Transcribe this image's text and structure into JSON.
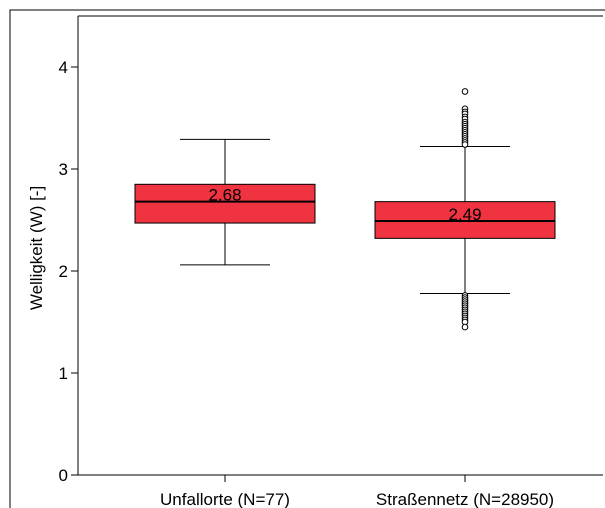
{
  "chart_data": {
    "type": "box",
    "title": "",
    "ylabel": "Welligkeit (W) [-]",
    "xlabel": "",
    "ylim": [
      0,
      4.5
    ],
    "yticks": [
      0,
      1,
      2,
      3,
      4
    ],
    "grid": false,
    "box_color": "#ef3340",
    "series": [
      {
        "category": "Unfallorte (N=77)",
        "median": 2.68,
        "median_label": "2,68",
        "q1": 2.47,
        "q3": 2.85,
        "whisker_low": 2.06,
        "whisker_high": 3.29,
        "outliers": []
      },
      {
        "category": "Straßennetz (N=28950)",
        "median": 2.49,
        "median_label": "2,49",
        "q1": 2.32,
        "q3": 2.68,
        "whisker_low": 1.78,
        "whisker_high": 3.22,
        "outliers": [
          3.76,
          3.59,
          3.56,
          3.54,
          3.51,
          3.49,
          3.46,
          3.44,
          3.42,
          3.4,
          3.38,
          3.36,
          3.34,
          3.32,
          3.3,
          3.28,
          3.26,
          3.24,
          1.76,
          1.74,
          1.72,
          1.7,
          1.68,
          1.66,
          1.64,
          1.62,
          1.6,
          1.58,
          1.56,
          1.54,
          1.52,
          1.5,
          1.45
        ]
      }
    ]
  }
}
